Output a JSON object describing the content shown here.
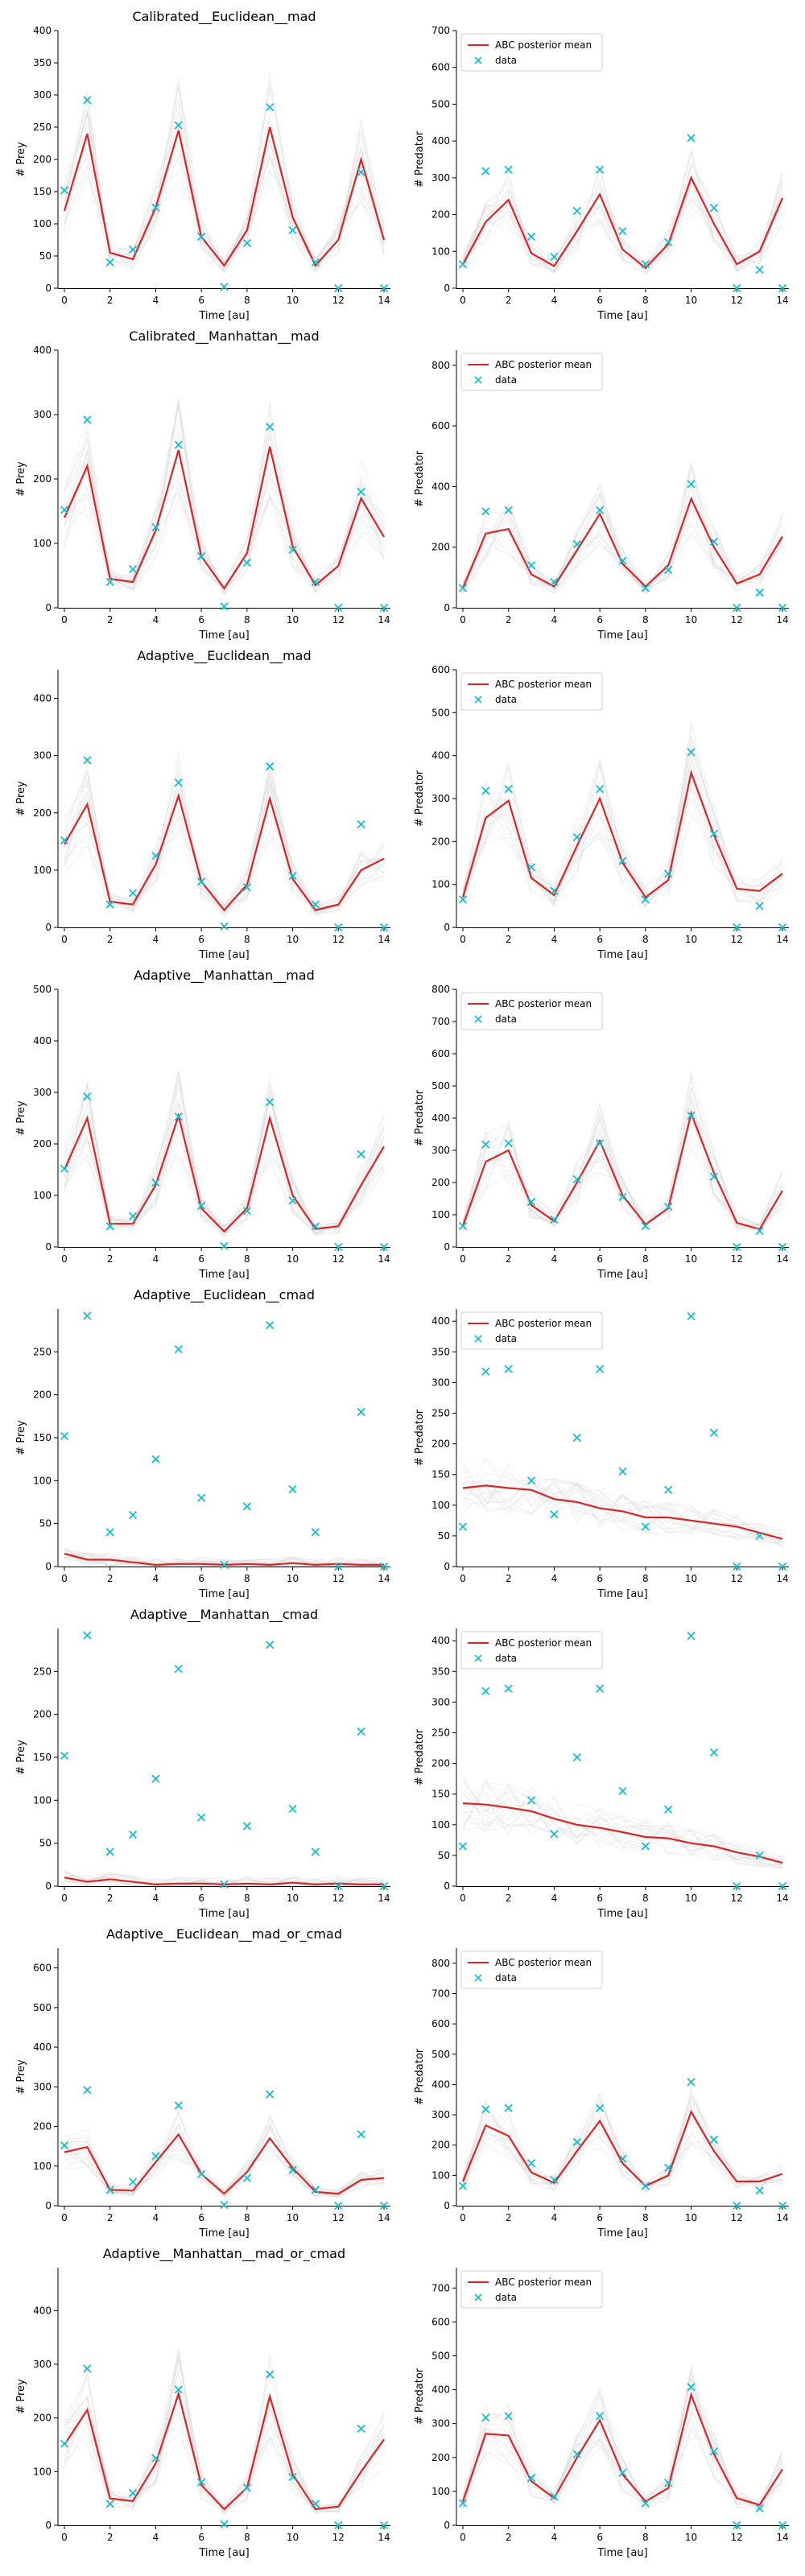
{
  "chart_data": [
    {
      "type": "line",
      "title": "Calibrated__Euclidean__mad",
      "xlabel": "Time [au]",
      "ylabel": "# Prey",
      "xlim": [
        0,
        14
      ],
      "ylim": [
        0,
        400
      ],
      "yticks": [
        0,
        50,
        100,
        150,
        200,
        250,
        300,
        350,
        400
      ],
      "xticks": [
        0,
        2,
        4,
        6,
        8,
        10,
        12,
        14
      ],
      "mean": [
        120,
        240,
        55,
        45,
        125,
        245,
        80,
        35,
        90,
        250,
        110,
        35,
        75,
        200,
        75
      ],
      "data": [
        152,
        292,
        40,
        60,
        125,
        253,
        80,
        2,
        70,
        281,
        90,
        40,
        0,
        180,
        0
      ],
      "legend": []
    },
    {
      "type": "line",
      "title": "",
      "xlabel": "Time [au]",
      "ylabel": "# Predator",
      "xlim": [
        0,
        14
      ],
      "ylim": [
        0,
        700
      ],
      "yticks": [
        0,
        100,
        200,
        300,
        400,
        500,
        600,
        700
      ],
      "xticks": [
        0,
        2,
        4,
        6,
        8,
        10,
        12,
        14
      ],
      "mean": [
        65,
        180,
        240,
        95,
        60,
        155,
        255,
        105,
        55,
        120,
        300,
        175,
        65,
        100,
        245
      ],
      "data": [
        65,
        318,
        322,
        140,
        85,
        210,
        322,
        155,
        65,
        125,
        408,
        218,
        0,
        50,
        0
      ],
      "legend": [
        "ABC posterior mean",
        "data"
      ]
    },
    {
      "type": "line",
      "title": "Calibrated__Manhattan__mad",
      "xlabel": "Time [au]",
      "ylabel": "# Prey",
      "xlim": [
        0,
        14
      ],
      "ylim": [
        0,
        400
      ],
      "yticks": [
        0,
        100,
        200,
        300,
        400
      ],
      "xticks": [
        0,
        2,
        4,
        6,
        8,
        10,
        12,
        14
      ],
      "mean": [
        140,
        220,
        45,
        40,
        120,
        245,
        80,
        30,
        85,
        250,
        95,
        35,
        65,
        170,
        110
      ],
      "data": [
        152,
        292,
        40,
        60,
        125,
        253,
        80,
        2,
        70,
        281,
        90,
        40,
        0,
        180,
        0
      ],
      "legend": []
    },
    {
      "type": "line",
      "title": "",
      "xlabel": "Time [au]",
      "ylabel": "# Predator",
      "xlim": [
        0,
        14
      ],
      "ylim": [
        0,
        850
      ],
      "yticks": [
        0,
        200,
        400,
        600,
        800
      ],
      "xticks": [
        0,
        2,
        4,
        6,
        8,
        10,
        12,
        14
      ],
      "mean": [
        65,
        245,
        260,
        110,
        70,
        190,
        310,
        145,
        70,
        140,
        360,
        200,
        80,
        110,
        235
      ],
      "data": [
        65,
        318,
        322,
        140,
        85,
        210,
        322,
        155,
        65,
        125,
        408,
        218,
        0,
        50,
        0
      ],
      "legend": [
        "ABC posterior mean",
        "data"
      ]
    },
    {
      "type": "line",
      "title": "Adaptive__Euclidean__mad",
      "xlabel": "Time [au]",
      "ylabel": "# Prey",
      "xlim": [
        0,
        14
      ],
      "ylim": [
        0,
        450
      ],
      "yticks": [
        0,
        100,
        200,
        300,
        400
      ],
      "xticks": [
        0,
        2,
        4,
        6,
        8,
        10,
        12,
        14
      ],
      "mean": [
        145,
        215,
        45,
        40,
        110,
        230,
        80,
        30,
        75,
        225,
        85,
        30,
        40,
        100,
        120
      ],
      "data": [
        152,
        292,
        40,
        60,
        125,
        253,
        80,
        2,
        70,
        281,
        90,
        40,
        0,
        180,
        0
      ],
      "legend": []
    },
    {
      "type": "line",
      "title": "",
      "xlabel": "Time [au]",
      "ylabel": "# Predator",
      "xlim": [
        0,
        14
      ],
      "ylim": [
        0,
        600
      ],
      "yticks": [
        0,
        100,
        200,
        300,
        400,
        500,
        600
      ],
      "xticks": [
        0,
        2,
        4,
        6,
        8,
        10,
        12,
        14
      ],
      "mean": [
        70,
        255,
        295,
        115,
        75,
        190,
        300,
        150,
        70,
        110,
        360,
        215,
        90,
        85,
        125
      ],
      "data": [
        65,
        318,
        322,
        140,
        85,
        210,
        322,
        155,
        65,
        125,
        408,
        218,
        0,
        50,
        0
      ],
      "legend": [
        "ABC posterior mean",
        "data"
      ]
    },
    {
      "type": "line",
      "title": "Adaptive__Manhattan__mad",
      "xlabel": "Time [au]",
      "ylabel": "# Prey",
      "xlim": [
        0,
        14
      ],
      "ylim": [
        0,
        500
      ],
      "yticks": [
        0,
        100,
        200,
        300,
        400,
        500
      ],
      "xticks": [
        0,
        2,
        4,
        6,
        8,
        10,
        12,
        14
      ],
      "mean": [
        150,
        250,
        45,
        45,
        120,
        255,
        75,
        30,
        75,
        250,
        100,
        35,
        40,
        120,
        195
      ],
      "data": [
        152,
        292,
        40,
        60,
        125,
        253,
        80,
        2,
        70,
        281,
        90,
        40,
        0,
        180,
        0
      ],
      "legend": []
    },
    {
      "type": "line",
      "title": "",
      "xlabel": "Time [au]",
      "ylabel": "# Predator",
      "xlim": [
        0,
        14
      ],
      "ylim": [
        0,
        800
      ],
      "yticks": [
        0,
        100,
        200,
        300,
        400,
        500,
        600,
        700,
        800
      ],
      "xticks": [
        0,
        2,
        4,
        6,
        8,
        10,
        12,
        14
      ],
      "mean": [
        65,
        265,
        300,
        130,
        80,
        200,
        330,
        160,
        70,
        120,
        415,
        230,
        75,
        55,
        175
      ],
      "data": [
        65,
        318,
        322,
        140,
        85,
        210,
        322,
        155,
        65,
        125,
        408,
        218,
        0,
        50,
        0
      ],
      "legend": [
        "ABC posterior mean",
        "data"
      ]
    },
    {
      "type": "line",
      "title": "Adaptive__Euclidean__cmad",
      "xlabel": "Time [au]",
      "ylabel": "# Prey",
      "xlim": [
        0,
        14
      ],
      "ylim": [
        0,
        300
      ],
      "yticks": [
        0,
        50,
        100,
        150,
        200,
        250
      ],
      "xticks": [
        0,
        2,
        4,
        6,
        8,
        10,
        12,
        14
      ],
      "mean": [
        15,
        8,
        8,
        5,
        2,
        3,
        3,
        2,
        3,
        2,
        4,
        2,
        3,
        2,
        2
      ],
      "data": [
        152,
        292,
        40,
        60,
        125,
        253,
        80,
        2,
        70,
        281,
        90,
        40,
        0,
        180,
        0
      ],
      "legend": []
    },
    {
      "type": "line",
      "title": "",
      "xlabel": "Time [au]",
      "ylabel": "# Predator",
      "xlim": [
        0,
        14
      ],
      "ylim": [
        0,
        420
      ],
      "yticks": [
        0,
        50,
        100,
        150,
        200,
        250,
        300,
        350,
        400
      ],
      "xticks": [
        0,
        2,
        4,
        6,
        8,
        10,
        12,
        14
      ],
      "mean": [
        128,
        132,
        128,
        125,
        110,
        105,
        95,
        90,
        80,
        80,
        75,
        70,
        65,
        55,
        45
      ],
      "data": [
        65,
        318,
        322,
        140,
        85,
        210,
        322,
        155,
        65,
        125,
        408,
        218,
        0,
        50,
        0
      ],
      "legend": [
        "ABC posterior mean",
        "data"
      ]
    },
    {
      "type": "line",
      "title": "Adaptive__Manhattan__cmad",
      "xlabel": "Time [au]",
      "ylabel": "# Prey",
      "xlim": [
        0,
        14
      ],
      "ylim": [
        0,
        300
      ],
      "yticks": [
        0,
        50,
        100,
        150,
        200,
        250
      ],
      "xticks": [
        0,
        2,
        4,
        6,
        8,
        10,
        12,
        14
      ],
      "mean": [
        10,
        5,
        8,
        5,
        2,
        3,
        3,
        2,
        3,
        2,
        4,
        2,
        3,
        2,
        2
      ],
      "data": [
        152,
        292,
        40,
        60,
        125,
        253,
        80,
        2,
        70,
        281,
        90,
        40,
        0,
        180,
        0
      ],
      "legend": []
    },
    {
      "type": "line",
      "title": "",
      "xlabel": "Time [au]",
      "ylabel": "# Predator",
      "xlim": [
        0,
        14
      ],
      "ylim": [
        0,
        420
      ],
      "yticks": [
        0,
        50,
        100,
        150,
        200,
        250,
        300,
        350,
        400
      ],
      "xticks": [
        0,
        2,
        4,
        6,
        8,
        10,
        12,
        14
      ],
      "mean": [
        135,
        133,
        128,
        122,
        110,
        100,
        95,
        88,
        80,
        78,
        70,
        65,
        55,
        48,
        38
      ],
      "data": [
        65,
        318,
        322,
        140,
        85,
        210,
        322,
        155,
        65,
        125,
        408,
        218,
        0,
        50,
        0
      ],
      "legend": [
        "ABC posterior mean",
        "data"
      ]
    },
    {
      "type": "line",
      "title": "Adaptive__Euclidean__mad_or_cmad",
      "xlabel": "Time [au]",
      "ylabel": "# Prey",
      "xlim": [
        0,
        14
      ],
      "ylim": [
        0,
        650
      ],
      "yticks": [
        0,
        100,
        200,
        300,
        400,
        500,
        600
      ],
      "xticks": [
        0,
        2,
        4,
        6,
        8,
        10,
        12,
        14
      ],
      "mean": [
        135,
        148,
        40,
        38,
        110,
        180,
        80,
        30,
        85,
        170,
        95,
        35,
        30,
        65,
        70
      ],
      "data": [
        152,
        292,
        40,
        60,
        125,
        253,
        80,
        2,
        70,
        281,
        90,
        40,
        0,
        180,
        0
      ],
      "legend": []
    },
    {
      "type": "line",
      "title": "",
      "xlabel": "Time [au]",
      "ylabel": "# Predator",
      "xlim": [
        0,
        14
      ],
      "ylim": [
        0,
        850
      ],
      "yticks": [
        0,
        100,
        200,
        300,
        400,
        500,
        600,
        700,
        800
      ],
      "xticks": [
        0,
        2,
        4,
        6,
        8,
        10,
        12,
        14
      ],
      "mean": [
        80,
        265,
        230,
        110,
        75,
        180,
        280,
        140,
        65,
        100,
        310,
        180,
        80,
        80,
        105
      ],
      "data": [
        65,
        318,
        322,
        140,
        85,
        210,
        322,
        155,
        65,
        125,
        408,
        218,
        0,
        50,
        0
      ],
      "legend": [
        "ABC posterior mean",
        "data"
      ]
    },
    {
      "type": "line",
      "title": "Adaptive__Manhattan__mad_or_cmad",
      "xlabel": "Time [au]",
      "ylabel": "# Prey",
      "xlim": [
        0,
        14
      ],
      "ylim": [
        0,
        480
      ],
      "yticks": [
        0,
        100,
        200,
        300,
        400
      ],
      "xticks": [
        0,
        2,
        4,
        6,
        8,
        10,
        12,
        14
      ],
      "mean": [
        150,
        215,
        50,
        45,
        115,
        245,
        75,
        30,
        70,
        240,
        95,
        30,
        35,
        100,
        160
      ],
      "data": [
        152,
        292,
        40,
        60,
        125,
        253,
        80,
        2,
        70,
        281,
        90,
        40,
        0,
        180,
        0
      ],
      "legend": []
    },
    {
      "type": "line",
      "title": "",
      "xlabel": "Time [au]",
      "ylabel": "# Predator",
      "xlim": [
        0,
        14
      ],
      "ylim": [
        0,
        760
      ],
      "yticks": [
        0,
        100,
        200,
        300,
        400,
        500,
        600,
        700
      ],
      "xticks": [
        0,
        2,
        4,
        6,
        8,
        10,
        12,
        14
      ],
      "mean": [
        70,
        270,
        265,
        130,
        80,
        200,
        310,
        150,
        70,
        110,
        385,
        210,
        80,
        60,
        165
      ],
      "data": [
        65,
        318,
        322,
        140,
        85,
        210,
        322,
        155,
        65,
        125,
        408,
        218,
        0,
        50,
        0
      ],
      "legend": [
        "ABC posterior mean",
        "data"
      ]
    }
  ],
  "colors": {
    "mean": "#d62728",
    "data": "#17becf",
    "posterior_samples": "#9e9e9e"
  }
}
